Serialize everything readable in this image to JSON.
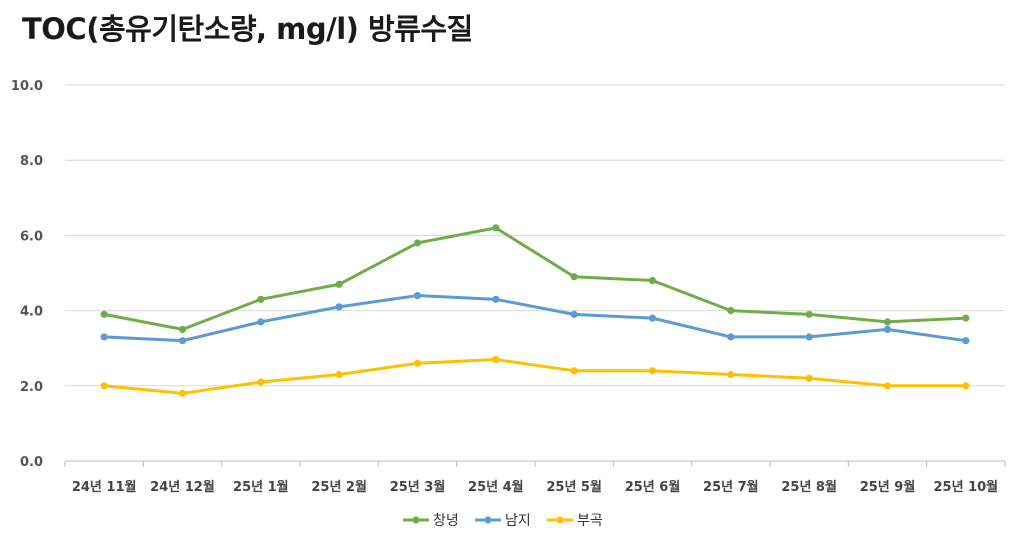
{
  "chart_data": {
    "type": "line",
    "title": "TOC(총유기탄소량, mg/l) 방류수질",
    "xlabel": "",
    "ylabel": "",
    "categories": [
      "24년 11월",
      "24년 12월",
      "25년 1월",
      "25년 2월",
      "25년 3월",
      "25년 4월",
      "25년 5월",
      "25년 6월",
      "25년 7월",
      "25년 8월",
      "25년 9월",
      "25년 10월"
    ],
    "ylim": [
      0,
      10
    ],
    "yticks": [
      "0.0",
      "2.0",
      "4.0",
      "6.0",
      "8.0",
      "10.0"
    ],
    "grid": true,
    "legend_position": "bottom",
    "series": [
      {
        "name": "창녕",
        "color": "#70ad47",
        "values": [
          3.9,
          3.5,
          4.3,
          4.7,
          5.8,
          6.2,
          4.9,
          4.8,
          4.0,
          3.9,
          3.7,
          3.8
        ]
      },
      {
        "name": "남지",
        "color": "#5b9bd5",
        "values": [
          3.3,
          3.2,
          3.7,
          4.1,
          4.4,
          4.3,
          3.9,
          3.8,
          3.3,
          3.3,
          3.5,
          3.2
        ]
      },
      {
        "name": "부곡",
        "color": "#ffc000",
        "values": [
          2.0,
          1.8,
          2.1,
          2.3,
          2.6,
          2.7,
          2.4,
          2.4,
          2.3,
          2.2,
          2.0,
          2.0
        ]
      }
    ]
  }
}
